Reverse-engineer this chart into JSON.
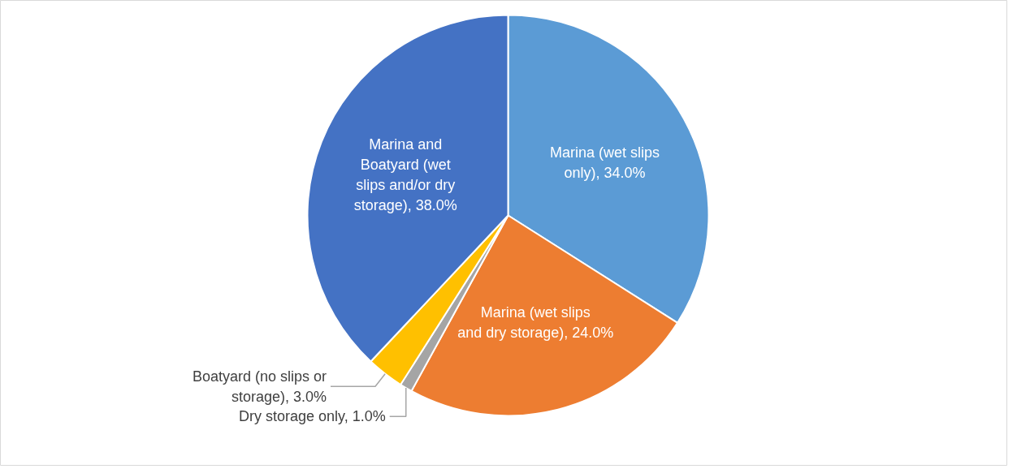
{
  "chart_data": {
    "type": "pie",
    "categories": [
      "Marina (wet slips only)",
      "Marina (wet slips and dry storage)",
      "Dry storage only",
      "Boatyard (no slips or storage)",
      "Marina and Boatyard (wet slips and/or dry storage)"
    ],
    "values": [
      34,
      24,
      1,
      3,
      38
    ],
    "value_labels": [
      "34.0%",
      "24.0%",
      "1.0%",
      "3.0%",
      "38.0%"
    ],
    "colors": [
      "#5b9bd5",
      "#ed7d31",
      "#a5a5a5",
      "#ffc000",
      "#4472c4"
    ]
  }
}
